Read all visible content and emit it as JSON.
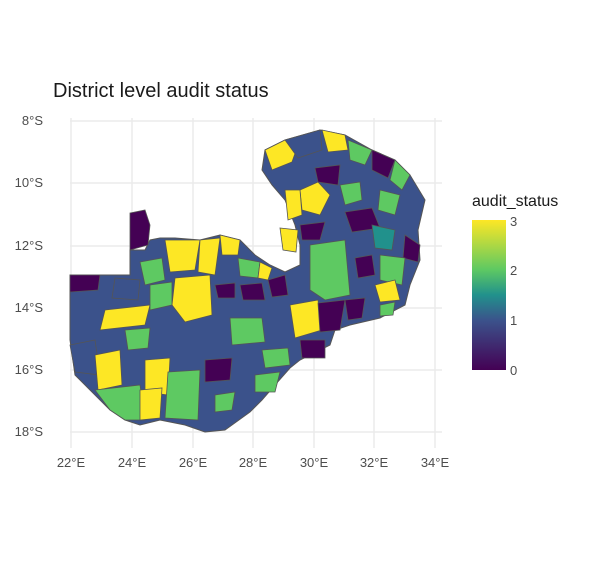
{
  "title": "District level audit status",
  "y_ticks": [
    "8°S",
    "10°S",
    "12°S",
    "14°S",
    "16°S",
    "18°S"
  ],
  "x_ticks": [
    "22°E",
    "24°E",
    "26°E",
    "28°E",
    "30°E",
    "32°E",
    "34°E"
  ],
  "legend": {
    "title": "audit_status",
    "labels": [
      "3",
      "2",
      "1",
      "0"
    ]
  },
  "colors": {
    "status_0": "#440154",
    "status_1": "#3b528b",
    "status_2": "#5ec962",
    "status_3": "#fde725",
    "status_1_5": "#21918c",
    "grid": "#ebebeb",
    "border": "#555555"
  }
}
